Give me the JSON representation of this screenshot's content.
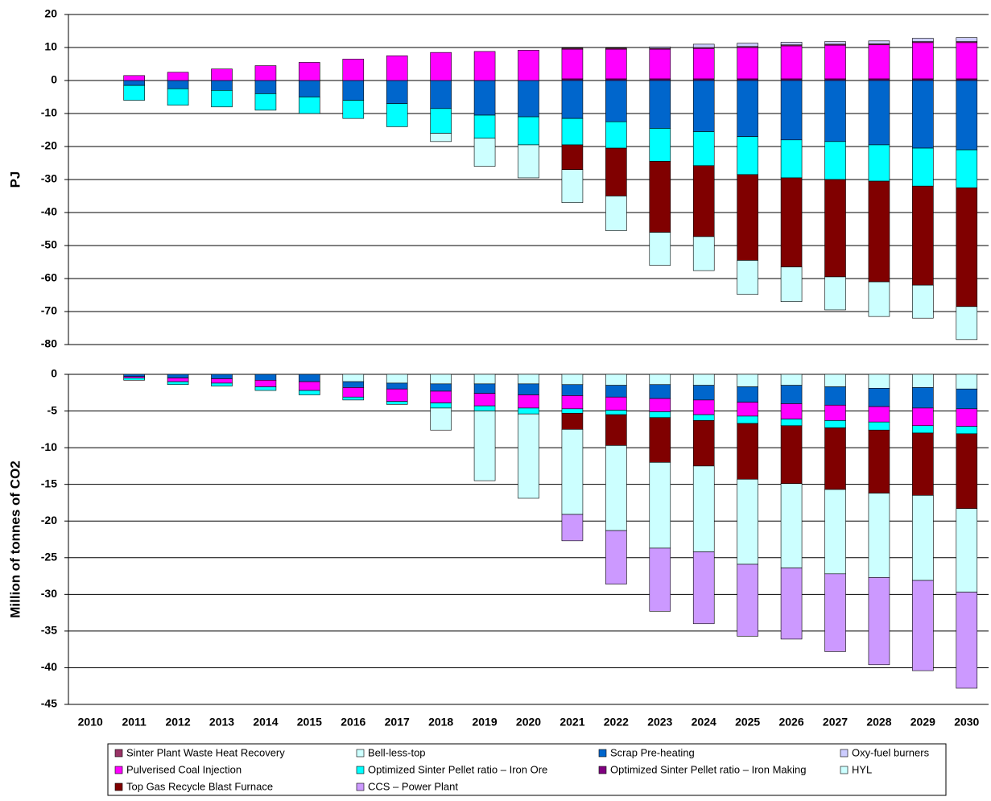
{
  "chart_data": [
    {
      "type": "bar",
      "ylabel": "PJ",
      "ylim": [
        -80,
        20
      ],
      "yticks": [
        -80,
        -70,
        -60,
        -50,
        -40,
        -30,
        -20,
        -10,
        0,
        10,
        20
      ],
      "grid": true,
      "legend": "bottom",
      "series": [
        {
          "name": "Sinter Plant Waste Heat Recovery",
          "color": "#993366",
          "values": [
            0,
            0,
            0,
            0,
            0,
            0,
            0,
            0,
            0,
            0,
            0,
            0.3,
            0.3,
            0.3,
            0.3,
            0.3,
            0.3,
            0.3,
            0.3,
            0.3,
            0.3
          ]
        },
        {
          "name": "Bell-less-top",
          "color": "#ccffff",
          "values": [
            0,
            0,
            0,
            0,
            0,
            0,
            0,
            0,
            0,
            0,
            0,
            0,
            0,
            0,
            0,
            0,
            0,
            0,
            0,
            0,
            0
          ]
        },
        {
          "name": "Scrap Pre-heating",
          "color": "#0066cc",
          "values": [
            0,
            -1.5,
            -2.5,
            -3,
            -4,
            -5,
            -6,
            -7,
            -8.5,
            -10.5,
            -11,
            -11.5,
            -12.5,
            -14.5,
            -15.5,
            -17,
            -18,
            -18.5,
            -19.5,
            -20.5,
            -21
          ]
        },
        {
          "name": "Oxy-fuel burners",
          "color": "#ccccff",
          "values": [
            0,
            0,
            0,
            0,
            0,
            0,
            0,
            0,
            0,
            0,
            0,
            0,
            0,
            0.4,
            1,
            1,
            0.8,
            0.8,
            0.9,
            1,
            1.2
          ]
        },
        {
          "name": "Pulverised Coal Injection",
          "color": "#ff00ff",
          "values": [
            0,
            1.5,
            2.5,
            3.5,
            4.5,
            5.5,
            6.5,
            7.5,
            8.5,
            8.8,
            9.2,
            9,
            9,
            9,
            9.2,
            9.5,
            10,
            10.2,
            10.3,
            11,
            11
          ]
        },
        {
          "name": "Optimized Sinter Pellet ratio – Iron Ore",
          "color": "#00ffff",
          "values": [
            0,
            -4.5,
            -5,
            -5,
            -5,
            -5,
            -5.5,
            -7,
            -7.5,
            -7,
            -8.5,
            -8,
            -8,
            -10,
            -10.3,
            -11.5,
            -11.5,
            -11.5,
            -11,
            -11.5,
            -11.5
          ]
        },
        {
          "name": "Optimized Sinter Pellet ratio – Iron Making",
          "color": "#800080",
          "values": [
            0,
            0,
            0,
            0,
            0,
            0,
            0,
            0,
            0,
            0,
            0,
            0.5,
            0.5,
            0.5,
            0.5,
            0.5,
            0.5,
            0.5,
            0.5,
            0.5,
            0.5
          ]
        },
        {
          "name": "HYL",
          "color": "#ccffff",
          "values": [
            0,
            0,
            0,
            0,
            0,
            0,
            0,
            0,
            -2.5,
            -8.5,
            -10,
            -10,
            -10.5,
            -10,
            -10.3,
            -10.3,
            -10.5,
            -10,
            -10.5,
            -10,
            -10
          ]
        },
        {
          "name": "Top Gas Recycle Blast Furnace",
          "color": "#800000",
          "values": [
            0,
            0,
            0,
            0,
            0,
            0,
            0,
            0,
            0,
            0,
            0,
            -7.5,
            -14.5,
            -21.5,
            -21.5,
            -26,
            -27,
            -29.5,
            -30.5,
            -30,
            -36
          ]
        },
        {
          "name": "CCS – Power Plant",
          "color": "#cc99ff",
          "values": [
            0,
            0,
            0,
            0,
            0,
            0,
            0,
            0,
            0,
            0,
            0,
            0,
            0,
            0,
            0,
            0,
            0,
            0,
            0,
            0,
            0
          ]
        }
      ]
    },
    {
      "type": "bar",
      "ylabel": "Million of tonnes of CO2",
      "ylim": [
        -45,
        0
      ],
      "yticks": [
        -45,
        -40,
        -35,
        -30,
        -25,
        -20,
        -15,
        -10,
        -5,
        0
      ],
      "grid": true,
      "categories": [
        "2010",
        "2011",
        "2012",
        "2013",
        "2014",
        "2015",
        "2016",
        "2017",
        "2018",
        "2019",
        "2020",
        "2021",
        "2022",
        "2023",
        "2024",
        "2025",
        "2026",
        "2027",
        "2028",
        "2029",
        "2030"
      ],
      "series": [
        {
          "name": "Sinter Plant Waste Heat Recovery",
          "color": "#993366",
          "values": [
            0,
            0,
            0,
            0,
            0,
            0,
            0,
            0,
            0,
            0,
            0,
            0,
            0,
            0,
            0,
            0,
            0,
            0,
            0,
            0,
            0
          ]
        },
        {
          "name": "Bell-less-top",
          "color": "#ccffff",
          "values": [
            0,
            0,
            0,
            0,
            0,
            0,
            -1,
            -1.2,
            -1.3,
            -1.3,
            -1.3,
            -1.4,
            -1.5,
            -1.4,
            -1.5,
            -1.7,
            -1.5,
            -1.7,
            -1.9,
            -1.8,
            -2
          ]
        },
        {
          "name": "Scrap Pre-heating",
          "color": "#0066cc",
          "values": [
            0,
            -0.3,
            -0.5,
            -0.6,
            -0.8,
            -1,
            -0.8,
            -0.8,
            -1,
            -1.3,
            -1.5,
            -1.5,
            -1.6,
            -1.9,
            -2,
            -2.1,
            -2.5,
            -2.5,
            -2.5,
            -2.8,
            -2.7
          ]
        },
        {
          "name": "Oxy-fuel burners",
          "color": "#ccccff",
          "values": [
            0,
            0,
            0,
            0,
            0,
            0,
            0,
            0,
            0,
            0,
            0,
            0,
            0,
            0,
            0,
            0,
            0,
            0,
            0,
            0,
            0
          ]
        },
        {
          "name": "Pulverised Coal Injection",
          "color": "#ff00ff",
          "values": [
            0,
            -0.2,
            -0.5,
            -0.6,
            -0.9,
            -1.2,
            -1.3,
            -1.7,
            -1.6,
            -1.7,
            -1.8,
            -1.8,
            -1.8,
            -1.8,
            -2,
            -1.9,
            -2.1,
            -2.1,
            -2.1,
            -2.4,
            -2.4
          ]
        },
        {
          "name": "Optimized Sinter Pellet ratio – Iron Ore",
          "color": "#00ffff",
          "values": [
            0,
            -0.3,
            -0.4,
            -0.4,
            -0.5,
            -0.6,
            -0.4,
            -0.4,
            -0.7,
            -0.7,
            -0.8,
            -0.6,
            -0.6,
            -0.8,
            -0.8,
            -1,
            -0.9,
            -1,
            -1.1,
            -1,
            -1
          ]
        },
        {
          "name": "Optimized Sinter Pellet ratio – Iron Making",
          "color": "#800080",
          "values": [
            0,
            0,
            0,
            0,
            0,
            0,
            0,
            0,
            0,
            0,
            0,
            0,
            0,
            0,
            0,
            0,
            0,
            0,
            0,
            0,
            0
          ]
        },
        {
          "name": "HYL",
          "color": "#ccffff",
          "values": [
            0,
            0,
            0,
            0,
            0,
            0,
            0,
            0,
            -3,
            -9.5,
            -11.5,
            -11.6,
            -11.6,
            -11.7,
            -11.7,
            -11.6,
            -11.5,
            -11.5,
            -11.5,
            -11.6,
            -11.4
          ]
        },
        {
          "name": "Top Gas Recycle Blast Furnace",
          "color": "#800000",
          "values": [
            0,
            0,
            0,
            0,
            0,
            0,
            0,
            0,
            0,
            0,
            0,
            -2.2,
            -4.2,
            -6.1,
            -6.2,
            -7.6,
            -7.9,
            -8.4,
            -8.6,
            -8.5,
            -10.2
          ]
        },
        {
          "name": "CCS – Power Plant",
          "color": "#cc99ff",
          "values": [
            0,
            0,
            0,
            0,
            0,
            0,
            0,
            0,
            0,
            0,
            0,
            -3.6,
            -7.3,
            -8.6,
            -9.8,
            -9.8,
            -9.7,
            -10.6,
            -11.9,
            -12.3,
            -13.1
          ]
        }
      ]
    }
  ]
}
